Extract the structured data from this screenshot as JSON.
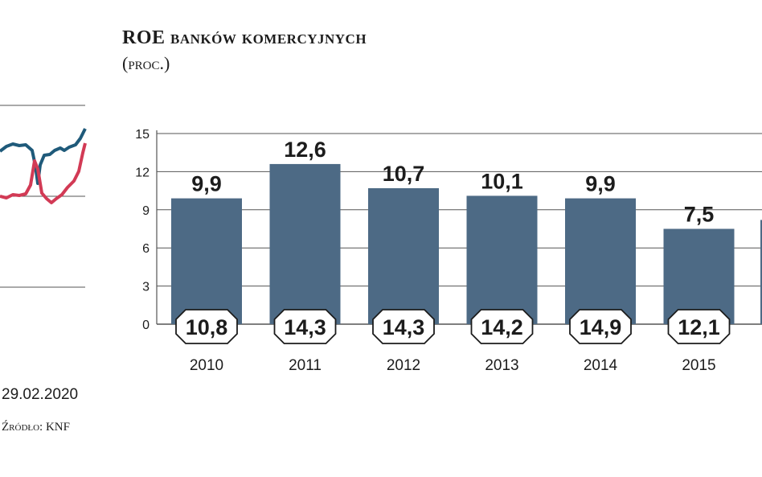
{
  "title": "ROE banków komercyjnych",
  "subtitle": "(proc.)",
  "left_chart": {
    "date_label": "29.02.2020",
    "colors": {
      "series_a": "#1f5a7a",
      "series_b": "#d23a55",
      "grid": "#555555"
    }
  },
  "source": "Źródło: KNF",
  "chart_data": {
    "type": "bar",
    "title": "ROE banków komercyjnych",
    "subtitle": "(proc.)",
    "categories": [
      "2010",
      "2011",
      "2012",
      "2013",
      "2014",
      "2015"
    ],
    "values": [
      9.9,
      12.6,
      10.7,
      10.1,
      9.9,
      7.5
    ],
    "value_labels": [
      "9,9",
      "12,6",
      "10,7",
      "10,1",
      "9,9",
      "7,5"
    ],
    "base_labels": [
      "10,8",
      "14,3",
      "14,3",
      "14,2",
      "14,9",
      "12,1"
    ],
    "y_ticks": [
      "0",
      "3",
      "6",
      "9",
      "12",
      "15"
    ],
    "ylim": [
      0,
      15
    ],
    "grid": true,
    "colors": {
      "bar": "#4d6a85",
      "grid": "#555555",
      "text": "#1c1c1c"
    }
  }
}
